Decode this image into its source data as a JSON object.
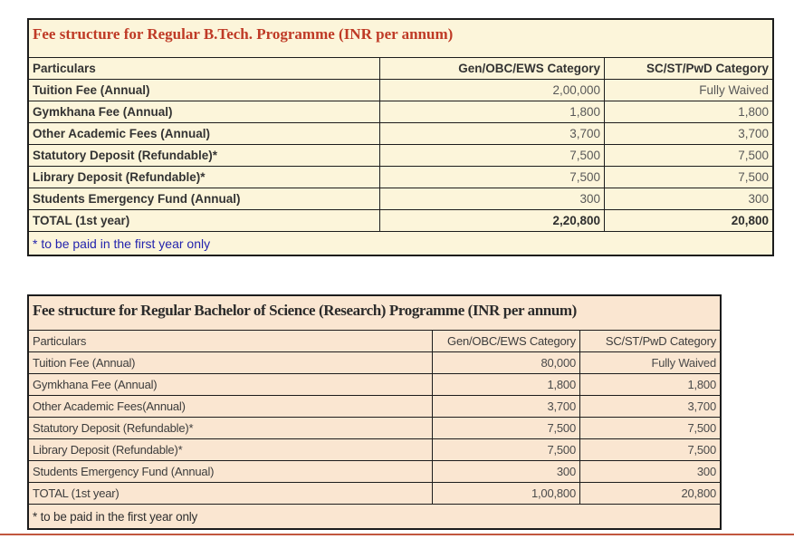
{
  "page": {
    "background": "#ffffff",
    "bottom_rule_color": "#c1563e"
  },
  "tables": [
    {
      "title": "Fee structure for Regular B.Tech. Programme (INR per annum)",
      "title_color": "#bf3a26",
      "background": "#fcf5da",
      "border_color": "#1c1c1c",
      "columns": [
        "Particulars",
        "Gen/OBC/EWS Category",
        "SC/ST/PwD Category"
      ],
      "rows": [
        {
          "label": "Tuition Fee (Annual)",
          "gen": "2,00,000",
          "sc": "Fully Waived"
        },
        {
          "label": "Gymkhana Fee (Annual)",
          "gen": "1,800",
          "sc": "1,800"
        },
        {
          "label": "Other Academic Fees (Annual)",
          "gen": "3,700",
          "sc": "3,700"
        },
        {
          "label": "Statutory Deposit (Refundable)*",
          "gen": "7,500",
          "sc": "7,500"
        },
        {
          "label": "Library Deposit (Refundable)*",
          "gen": "7,500",
          "sc": "7,500"
        },
        {
          "label": "Students Emergency Fund (Annual)",
          "gen": "300",
          "sc": "300"
        },
        {
          "label": "TOTAL (1st year)",
          "gen": "2,20,800",
          "sc": "20,800"
        }
      ],
      "footnote": "* to be paid in the first year only",
      "footnote_color": "#2323ad"
    },
    {
      "title": "Fee structure for Regular Bachelor of Science (Research) Programme (INR per annum)",
      "title_color": "#2b2b2b",
      "background": "#fae6d1",
      "border_color": "#1c1c1c",
      "columns": [
        "Particulars",
        "Gen/OBC/EWS Category",
        "SC/ST/PwD Category"
      ],
      "rows": [
        {
          "label": "Tuition Fee (Annual)",
          "gen": "80,000",
          "sc": "Fully Waived"
        },
        {
          "label": "Gymkhana Fee (Annual)",
          "gen": "1,800",
          "sc": "1,800"
        },
        {
          "label": "Other Academic Fees(Annual)",
          "gen": "3,700",
          "sc": "3,700"
        },
        {
          "label": "Statutory Deposit (Refundable)*",
          "gen": "7,500",
          "sc": "7,500"
        },
        {
          "label": "Library Deposit (Refundable)*",
          "gen": "7,500",
          "sc": "7,500"
        },
        {
          "label": "Students Emergency Fund (Annual)",
          "gen": "300",
          "sc": "300"
        },
        {
          "label": "TOTAL (1st year)",
          "gen": "1,00,800",
          "sc": "20,800"
        }
      ],
      "footnote": "* to be paid in the first year only",
      "footnote_color": "#2f2f2f"
    }
  ]
}
